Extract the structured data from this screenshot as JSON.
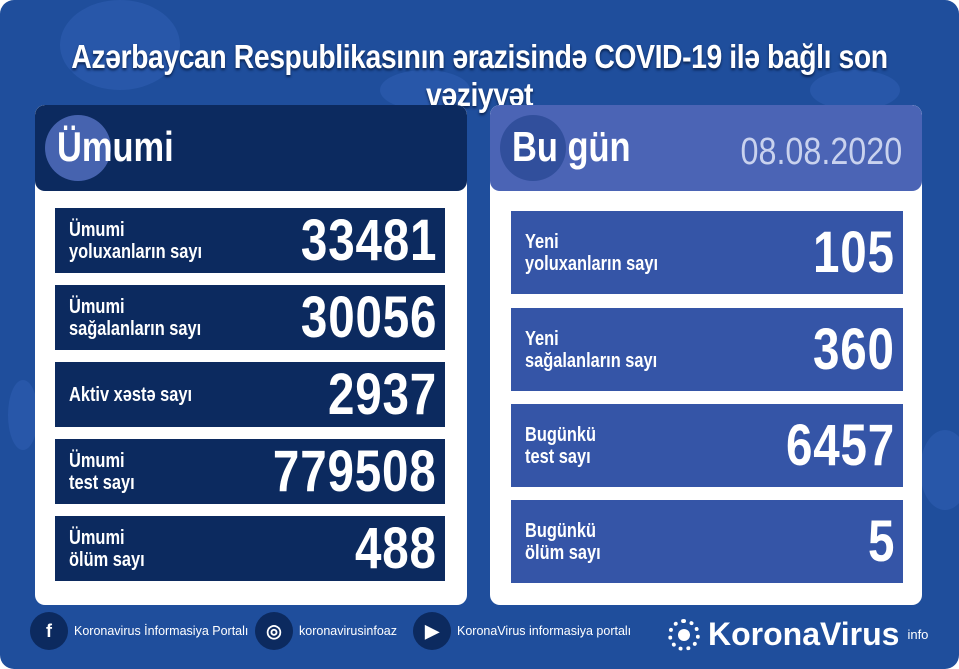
{
  "title": "Azərbaycan Respublikasının ərazisində COVID-19 ilə bağlı son vəziyyət",
  "colors": {
    "background": "#1f4e9c",
    "dark_navy": "#0c2a5f",
    "today_header": "#4b64b5",
    "today_card": "#3555a7"
  },
  "total": {
    "heading": "Ümumi",
    "items": [
      {
        "label1": "Ümumi",
        "label2": "yoluxanların sayı",
        "value": "33481"
      },
      {
        "label1": "Ümumi",
        "label2": "sağalanların sayı",
        "value": "30056"
      },
      {
        "label1": "Aktiv xəstə sayı",
        "label2": "",
        "value": "2937"
      },
      {
        "label1": "Ümumi",
        "label2": "test sayı",
        "value": "779508"
      },
      {
        "label1": "Ümumi",
        "label2": "ölüm sayı",
        "value": "488"
      }
    ]
  },
  "today": {
    "heading": "Bu gün",
    "date": "08.08.2020",
    "items": [
      {
        "label1": "Yeni",
        "label2": "yoluxanların sayı",
        "value": "105"
      },
      {
        "label1": "Yeni",
        "label2": "sağalanların sayı",
        "value": "360"
      },
      {
        "label1": "Bugünkü",
        "label2": "test sayı",
        "value": "6457"
      },
      {
        "label1": "Bugünkü",
        "label2": "ölüm sayı",
        "value": "5"
      }
    ]
  },
  "footer": {
    "facebook": "Koronavirus İnformasiya Portalı",
    "instagram": "koronavirusinfoaz",
    "youtube": "KoronaVirus informasiya portalı",
    "brand": "KoronaVirus",
    "brand_sup": "info"
  }
}
